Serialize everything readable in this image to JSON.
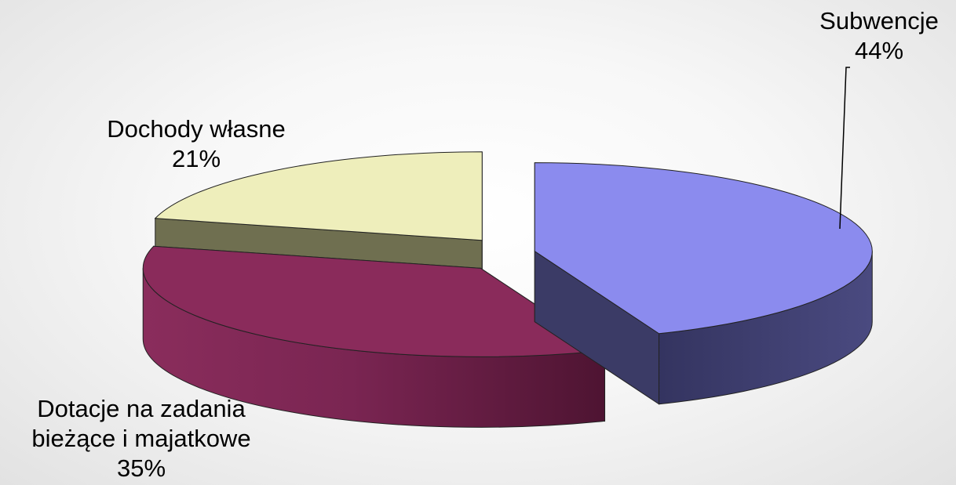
{
  "chart_data": {
    "type": "pie",
    "title": "",
    "slices": [
      {
        "name": "Subwencje",
        "value": 44,
        "label_lines": [
          "Subwencje"
        ],
        "percent_label": "44%",
        "color": "#8B8BEE",
        "side_color": "#3B3B66"
      },
      {
        "name": "Dotacje na zadania bieżące i majatkowe",
        "value": 35,
        "label_lines": [
          "Dotacje na zadania",
          "bieżące i majatkowe"
        ],
        "percent_label": "35%",
        "color": "#8A2B5B",
        "side_color": "#6E2248"
      },
      {
        "name": "Dochody własne",
        "value": 21,
        "label_lines": [
          "Dochody własne"
        ],
        "percent_label": "21%",
        "color": "#EEEEBB",
        "side_color": "#6F6F50"
      }
    ],
    "exploded": true,
    "three_d": true,
    "legend": "none"
  }
}
